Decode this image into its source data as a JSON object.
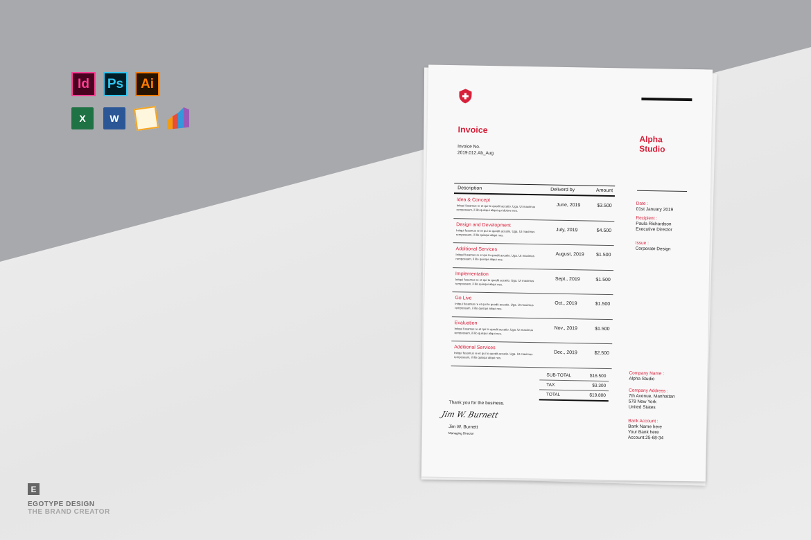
{
  "background": {
    "top_color": "#a8a9ad",
    "floor_color": "#ececec"
  },
  "software_icons": [
    {
      "name": "indesign-icon",
      "label": "Id",
      "color": "#ff3f94",
      "bg": "#49021f"
    },
    {
      "name": "photoshop-icon",
      "label": "Ps",
      "color": "#31c5f0",
      "bg": "#001d26"
    },
    {
      "name": "illustrator-icon",
      "label": "Ai",
      "color": "#ff7c00",
      "bg": "#261300"
    },
    {
      "name": "excel-icon",
      "label": "X",
      "color": "#1f7244"
    },
    {
      "name": "word-icon",
      "label": "W",
      "color": "#2b5797"
    },
    {
      "name": "pages-icon",
      "label": "",
      "color": "#f5a623"
    },
    {
      "name": "numbers-icon",
      "label": "",
      "color": "#8e44ad"
    }
  ],
  "brand": {
    "mark": "E",
    "name": "EGOTYPE DESIGN",
    "tagline": "THE BRAND CREATOR"
  },
  "invoice": {
    "accent": "#d8203a",
    "title": "Invoice",
    "number_label": "Invoice No.",
    "number": "2019.012.Ab_Aug",
    "company": [
      "Alpha",
      "Studio"
    ],
    "headers": {
      "description": "Description",
      "delivered": "Deliverd by",
      "amount": "Amount"
    },
    "items": [
      {
        "title": "Idea & Concept",
        "desc": "Initqui fusamus re et qui to quodit accatio. Uga. Ut maximus rempossam, il illo quisqui aliqui qui dolore nes.",
        "date": "June, 2019",
        "amount": "$3.500"
      },
      {
        "title": "Design and Development",
        "desc": "Initqui fusamus re et qui to quodit accatio. Uga. Ut maximus rempossam, il illo quisqui aliqui nes.",
        "date": "July, 2019",
        "amount": "$4.500"
      },
      {
        "title": "Additional Services",
        "desc": "Initqui fusamus re et qui to quodit accatio. Uga. Ut maximus rempossam, il illo quisqui aliqui nes.",
        "date": "August, 2019",
        "amount": "$1.500"
      },
      {
        "title": "Implementation",
        "desc": "Initqui fusamus re et qui to quodit accatio. Uga. Ut maximus rempossam, il illo quisqui aliqui nes.",
        "date": "Sept., 2019",
        "amount": "$1.500"
      },
      {
        "title": "Go Live",
        "desc": "Initqui fusamus re et qui to quodit accatio. Uga. Ut maximus rempossam, il illo quisqui aliqui nes.",
        "date": "Oct., 2019",
        "amount": "$1.500"
      },
      {
        "title": "Evaluation",
        "desc": "Initqui fusamus re et qui to quodit accatio. Uga. Ut maximus rempossam, il illo quisqui aliqui nes.",
        "date": "Nov., 2019",
        "amount": "$1.500"
      },
      {
        "title": "Additional Services",
        "desc": "Initqui fusamus re et qui to quodit accatio. Uga. Ut maximus rempossam, il illo quisqui aliqui nes.",
        "date": "Dec., 2019",
        "amount": "$2.500"
      }
    ],
    "totals": [
      {
        "label": "SUB-TOTAL",
        "value": "$16.500"
      },
      {
        "label": "TAX",
        "value": "$3.300"
      },
      {
        "label": "TOTAL",
        "value": "$19.800"
      }
    ],
    "date_label": "Date :",
    "date": "01st January 2019",
    "recipient_label": "Recipient :",
    "recipient": [
      "Paula Richardson",
      "Executive Director"
    ],
    "issue_label": "Issue :",
    "issue": "Corporate Design",
    "company_name_label": "Company Name :",
    "company_name": "Alpha Studio",
    "address_label": "Company Address :",
    "address": [
      "7th Avenue, Manhattan",
      "578 New York",
      "United States"
    ],
    "bank_label": "Bank Account :",
    "bank": [
      "Bank Name here",
      "Your Bank here",
      "Account:25-68-34"
    ],
    "thanks": "Thank you for the business.",
    "signature": "Jim W. Burnett",
    "signer": "Jim W. Burnett",
    "signer_role": "Managing Director"
  }
}
